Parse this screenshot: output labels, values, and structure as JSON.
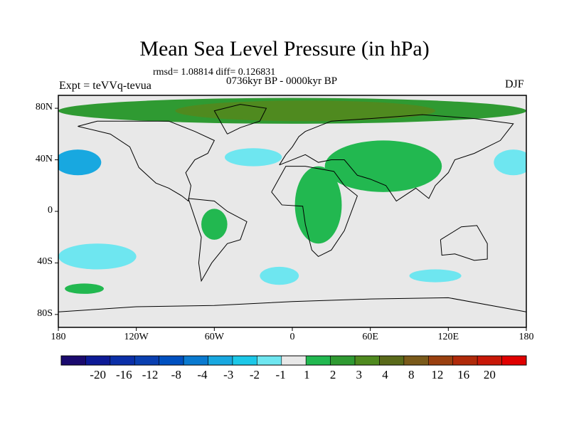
{
  "chart_data": {
    "type": "heatmap",
    "title": "Mean Sea Level Pressure (in hPa)",
    "stats_text": "rmsd= 1.08814 diff= 0.126831",
    "period": "0736kyr BP - 0000kyr BP",
    "experiment": "Expt = teVVq-tevua",
    "season": "DJF",
    "x_axis": {
      "range": [
        -180,
        180
      ],
      "ticks": [
        {
          "value": -180,
          "label": "180"
        },
        {
          "value": -120,
          "label": "120W"
        },
        {
          "value": -60,
          "label": "60W"
        },
        {
          "value": 0,
          "label": "0"
        },
        {
          "value": 60,
          "label": "60E"
        },
        {
          "value": 120,
          "label": "120E"
        },
        {
          "value": 180,
          "label": "180"
        }
      ]
    },
    "y_axis": {
      "range": [
        -90,
        90
      ],
      "ticks": [
        {
          "value": 80,
          "label": "80N"
        },
        {
          "value": 40,
          "label": "40N"
        },
        {
          "value": 0,
          "label": "0"
        },
        {
          "value": -40,
          "label": "40S"
        },
        {
          "value": -80,
          "label": "80S"
        }
      ]
    },
    "colorbar": {
      "colors": [
        "#1a0a6e",
        "#0d1a96",
        "#0b2fa8",
        "#0a3fb0",
        "#0050c0",
        "#0a7ad0",
        "#18a8e0",
        "#1cc8e8",
        "#6ee6f0",
        "#e8e8e8",
        "#22b850",
        "#2f9a32",
        "#4f8a1f",
        "#5a6a1a",
        "#7a5a1a",
        "#9a4010",
        "#b02a0a",
        "#c81808",
        "#e00000"
      ],
      "labels": [
        "-20",
        "-16",
        "-12",
        "-8",
        "-4",
        "-3",
        "-2",
        "-1",
        "1",
        "2",
        "3",
        "4",
        "8",
        "12",
        "16",
        "20"
      ]
    },
    "regions": [
      {
        "name": "arctic-ridge",
        "level": "3",
        "color": "#2f9a32",
        "center": [
          0,
          78
        ],
        "radius": [
          180,
          10
        ]
      },
      {
        "name": "siberia-ridge",
        "level": "4",
        "color": "#4f8a1f",
        "center": [
          10,
          78
        ],
        "radius": [
          100,
          8
        ]
      },
      {
        "name": "north-pacific-low",
        "level": "-2",
        "color": "#18a8e0",
        "center": [
          -165,
          38
        ],
        "radius": [
          18,
          10
        ]
      },
      {
        "name": "north-atlantic-low",
        "level": "-1",
        "color": "#6ee6f0",
        "center": [
          -30,
          42
        ],
        "radius": [
          22,
          7
        ]
      },
      {
        "name": "west-pacific-low",
        "level": "-1",
        "color": "#6ee6f0",
        "center": [
          170,
          38
        ],
        "radius": [
          15,
          10
        ]
      },
      {
        "name": "asia-ridge",
        "level": "2",
        "color": "#22b850",
        "center": [
          70,
          35
        ],
        "radius": [
          45,
          20
        ]
      },
      {
        "name": "africa-ridge",
        "level": "2",
        "color": "#22b850",
        "center": [
          20,
          5
        ],
        "radius": [
          18,
          30
        ]
      },
      {
        "name": "south-america-ridge",
        "level": "2",
        "color": "#22b850",
        "center": [
          -60,
          -10
        ],
        "radius": [
          10,
          12
        ]
      },
      {
        "name": "south-pacific-low",
        "level": "-1",
        "color": "#6ee6f0",
        "center": [
          -150,
          -35
        ],
        "radius": [
          30,
          10
        ]
      },
      {
        "name": "south-atlantic-low",
        "level": "-1",
        "color": "#6ee6f0",
        "center": [
          -10,
          -50
        ],
        "radius": [
          15,
          7
        ]
      },
      {
        "name": "indian-ocean-low",
        "level": "-1",
        "color": "#6ee6f0",
        "center": [
          110,
          -50
        ],
        "radius": [
          20,
          5
        ]
      },
      {
        "name": "southern-ridge",
        "level": "2",
        "color": "#22b850",
        "center": [
          -160,
          -60
        ],
        "radius": [
          15,
          4
        ]
      }
    ]
  }
}
